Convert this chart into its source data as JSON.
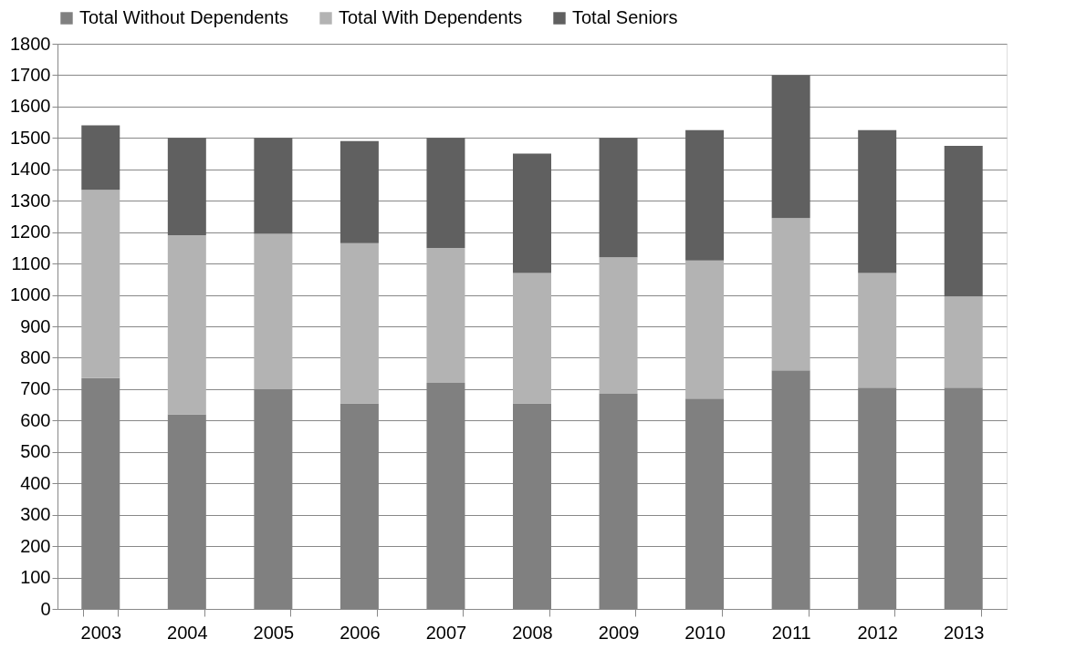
{
  "chart_data": {
    "type": "bar",
    "stacked": true,
    "legend": "top",
    "grid": "y",
    "categories": [
      "2003",
      "2004",
      "2005",
      "2006",
      "2007",
      "2008",
      "2009",
      "2010",
      "2011",
      "2012",
      "2013"
    ],
    "series": [
      {
        "name": "Total Without Dependents",
        "color": "#808080",
        "values": [
          735,
          620,
          700,
          655,
          720,
          655,
          685,
          670,
          760,
          705,
          705
        ]
      },
      {
        "name": "Total With Dependents",
        "color": "#b3b3b3",
        "values": [
          600,
          570,
          495,
          510,
          430,
          415,
          435,
          440,
          485,
          365,
          290
        ]
      },
      {
        "name": "Total Seniors",
        "color": "#606060",
        "values": [
          205,
          310,
          305,
          325,
          350,
          380,
          380,
          415,
          455,
          455,
          480
        ]
      }
    ],
    "ylim": [
      0,
      1800
    ],
    "yticks": [
      0,
      100,
      200,
      300,
      400,
      500,
      600,
      700,
      800,
      900,
      1000,
      1100,
      1200,
      1300,
      1400,
      1500,
      1600,
      1700,
      1800
    ]
  }
}
